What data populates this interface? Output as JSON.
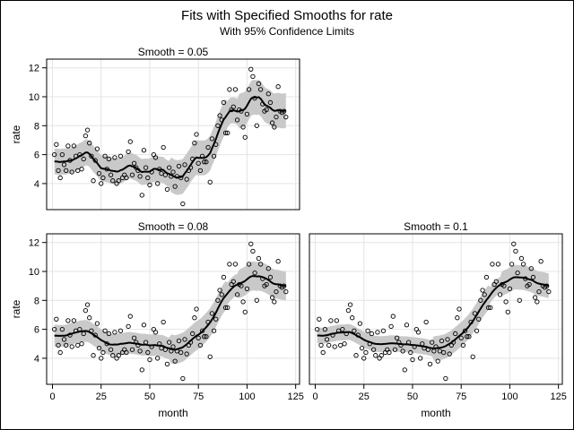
{
  "chart_data": {
    "type": "scatter",
    "title": "Fits with Specified Smooths for rate",
    "subtitle": "With 95% Confidence Limits",
    "xlabel": "month",
    "ylabel": "rate",
    "xlim": [
      -3,
      127
    ],
    "ylim": [
      2.2,
      12.6
    ],
    "x_ticks": [
      "0",
      "25",
      "50",
      "75",
      "100",
      "125"
    ],
    "y_ticks": [
      "4",
      "6",
      "8",
      "10",
      "12"
    ],
    "grid": true,
    "panels": [
      {
        "title": "Smooth = 0.05",
        "position": "top-left",
        "show_xlabel": false,
        "show_ylabel": true,
        "show_xticks": false,
        "show_yticks": true,
        "band_halfwidth": [
          0.9,
          1.2
        ],
        "smooth_strength": 0.05
      },
      {
        "title": "Smooth = 0.08",
        "position": "bottom-left",
        "show_xlabel": true,
        "show_ylabel": true,
        "show_xticks": true,
        "show_yticks": true,
        "band_halfwidth": [
          0.75,
          1.0
        ],
        "smooth_strength": 0.08
      },
      {
        "title": "Smooth = 0.1",
        "position": "bottom-right",
        "show_xlabel": true,
        "show_ylabel": false,
        "show_xticks": true,
        "show_yticks": false,
        "band_halfwidth": [
          0.55,
          0.85
        ],
        "smooth_strength": 0.1
      }
    ],
    "series": [
      {
        "name": "rate",
        "x": [
          1,
          2,
          3,
          4,
          5,
          6,
          7,
          8,
          9,
          10,
          11,
          12,
          13,
          14,
          15,
          16,
          17,
          18,
          19,
          20,
          21,
          22,
          23,
          24,
          25,
          26,
          27,
          28,
          29,
          30,
          31,
          32,
          33,
          34,
          35,
          36,
          37,
          38,
          39,
          40,
          41,
          42,
          43,
          44,
          45,
          46,
          47,
          48,
          49,
          50,
          51,
          52,
          53,
          54,
          55,
          56,
          57,
          58,
          59,
          60,
          61,
          62,
          63,
          64,
          65,
          66,
          67,
          68,
          69,
          70,
          71,
          72,
          73,
          74,
          75,
          76,
          77,
          78,
          79,
          80,
          81,
          82,
          83,
          84,
          85,
          86,
          87,
          88,
          89,
          90,
          91,
          92,
          93,
          94,
          95,
          96,
          97,
          98,
          99,
          100,
          101,
          102,
          103,
          104,
          105,
          106,
          107,
          108,
          109,
          110,
          111,
          112,
          113,
          114,
          115,
          116,
          117,
          118,
          119,
          120
        ],
        "y": [
          6.0,
          6.7,
          4.9,
          4.4,
          6.0,
          5.3,
          4.9,
          6.6,
          5.6,
          4.8,
          6.6,
          5.9,
          4.9,
          6.0,
          5.0,
          5.7,
          7.3,
          7.7,
          6.8,
          5.9,
          4.2,
          5.6,
          6.4,
          4.7,
          4.0,
          4.4,
          5.9,
          5.0,
          5.7,
          4.6,
          4.2,
          5.8,
          4.0,
          4.2,
          5.9,
          4.4,
          4.6,
          4.4,
          6.2,
          6.9,
          4.6,
          5.4,
          5.1,
          4.9,
          4.5,
          3.2,
          6.3,
          5.1,
          4.4,
          3.9,
          4.8,
          6.0,
          5.8,
          4.0,
          5.0,
          4.7,
          6.5,
          4.6,
          3.6,
          5.1,
          4.5,
          4.8,
          3.8,
          4.5,
          5.2,
          4.4,
          2.6,
          5.3,
          4.3,
          4.9,
          5.1,
          5.7,
          6.8,
          7.4,
          5.4,
          4.9,
          5.9,
          5.5,
          5.5,
          6.5,
          4.1,
          7.1,
          5.9,
          6.7,
          8.0,
          8.7,
          8.4,
          9.6,
          7.5,
          7.5,
          10.5,
          9.1,
          9.3,
          10.5,
          8.4,
          9.1,
          9.0,
          7.9,
          7.2,
          8.8,
          10.5,
          11.9,
          11.4,
          9.9,
          8.0,
          10.9,
          10.5,
          9.5,
          9.0,
          9.1,
          10.2,
          9.6,
          8.2,
          7.9,
          8.6,
          10.7,
          9.0,
          8.9,
          9.0,
          8.6
        ]
      }
    ]
  }
}
